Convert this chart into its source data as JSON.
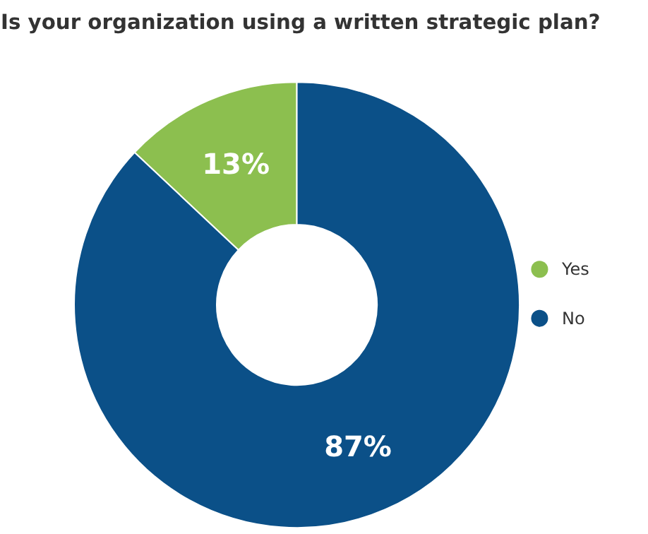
{
  "chart_data": {
    "type": "donut",
    "title": "Is your organization using a written strategic plan?",
    "categories": [
      "Yes",
      "No"
    ],
    "values": [
      13,
      87
    ],
    "colors": [
      "#8cbf4f",
      "#0b5088"
    ],
    "value_labels": [
      "13%",
      "87%"
    ],
    "legend": "right"
  }
}
